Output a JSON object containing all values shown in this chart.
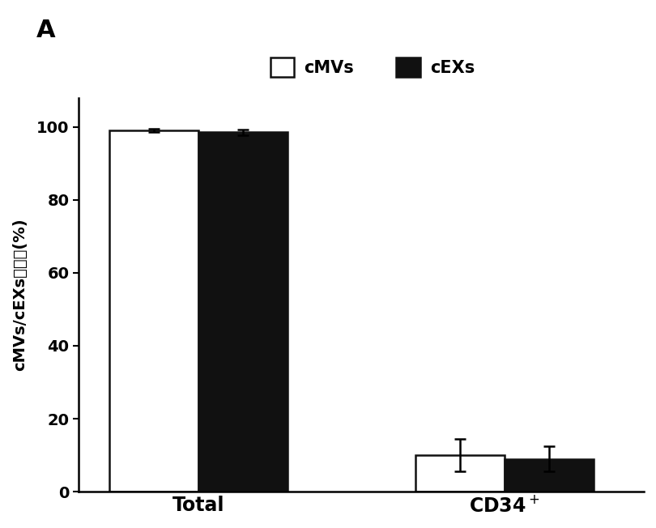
{
  "categories": [
    "Total",
    "CD34+"
  ],
  "cmvs_values": [
    99.0,
    10.0
  ],
  "cexs_values": [
    98.5,
    9.0
  ],
  "cmvs_errors": [
    0.5,
    4.5
  ],
  "cexs_errors": [
    0.8,
    3.5
  ],
  "cmvs_color": "#ffffff",
  "cexs_color": "#111111",
  "bar_edge_color": "#111111",
  "ylabel_ascii": "cMVs/cEXs",
  "ylabel_chinese": "的纯化(%)",
  "ylim": [
    0,
    108
  ],
  "yticks": [
    0,
    20,
    40,
    60,
    80,
    100
  ],
  "panel_label": "A",
  "legend_labels": [
    "cMVs",
    "cEXs"
  ],
  "bar_width": 0.32,
  "background_color": "#ffffff",
  "plot_bg_color": "#ffffff",
  "label_fontsize": 14,
  "tick_fontsize": 13,
  "legend_fontsize": 15
}
